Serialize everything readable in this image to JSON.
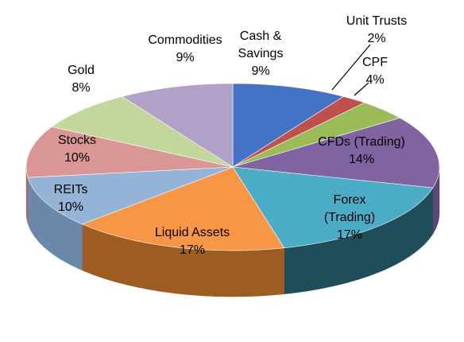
{
  "chart_data": {
    "type": "pie",
    "style": "3d",
    "legend": "none",
    "slices": [
      {
        "name": "Cash & Savings",
        "lines": [
          "Cash &",
          "Savings"
        ],
        "value": 9,
        "label": "9%",
        "color": "#4472C4",
        "side": "#2E5599"
      },
      {
        "name": "Unit Trusts",
        "lines": [
          "Unit Trusts"
        ],
        "value": 2,
        "label": "2%",
        "color": "#C0504D",
        "side": "#8E3533"
      },
      {
        "name": "CPF",
        "lines": [
          "CPF"
        ],
        "value": 4,
        "label": "4%",
        "color": "#9BBB59",
        "side": "#6F8A3B"
      },
      {
        "name": "CFDs (Trading)",
        "lines": [
          "CFDs (Trading)"
        ],
        "value": 14,
        "label": "14%",
        "color": "#8064A2",
        "side": "#5B4677"
      },
      {
        "name": "Forex (Trading)",
        "lines": [
          "Forex",
          "(Trading)"
        ],
        "value": 17,
        "label": "17%",
        "color": "#4BACC6",
        "side": "#1F4E5A"
      },
      {
        "name": "Liquid Assets",
        "lines": [
          "Liquid Assets"
        ],
        "value": 17,
        "label": "17%",
        "color": "#F79646",
        "side": "#9E5D20"
      },
      {
        "name": "REITs",
        "lines": [
          "REITs"
        ],
        "value": 10,
        "label": "10%",
        "color": "#95B3D7",
        "side": "#6B87AA"
      },
      {
        "name": "Stocks",
        "lines": [
          "Stocks"
        ],
        "value": 10,
        "label": "10%",
        "color": "#D99694",
        "side": "#A86A68"
      },
      {
        "name": "Gold",
        "lines": [
          "Gold"
        ],
        "value": 8,
        "label": "8%",
        "color": "#C3D69B",
        "side": "#94A870"
      },
      {
        "name": "Commodities",
        "lines": [
          "Commodities"
        ],
        "value": 9,
        "label": "9%",
        "color": "#B2A1C7",
        "side": "#8474A0"
      }
    ]
  }
}
